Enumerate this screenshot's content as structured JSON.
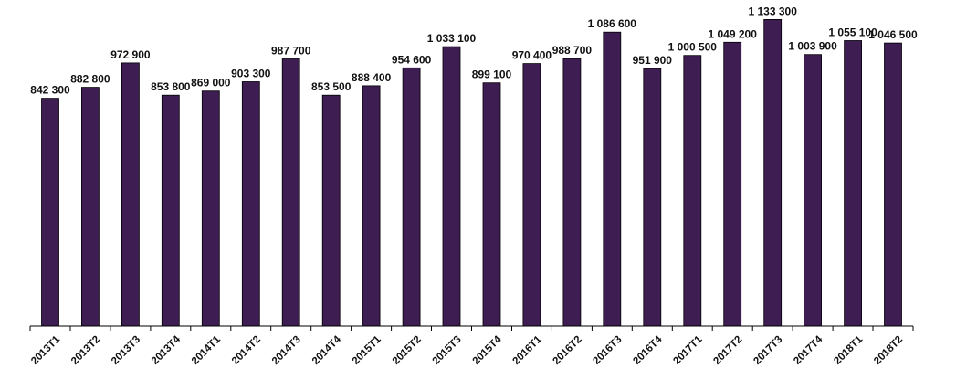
{
  "chart_data": {
    "type": "bar",
    "title": "",
    "xlabel": "",
    "ylabel": "",
    "ylim": [
      0,
      1165000
    ],
    "grid": false,
    "legend": "none",
    "bar_color": "#3e1d52",
    "categories": [
      "2013T1",
      "2013T2",
      "2013T3",
      "2013T4",
      "2014T1",
      "2014T2",
      "2014T3",
      "2014T4",
      "2015T1",
      "2015T2",
      "2015T3",
      "2015T4",
      "2016T1",
      "2016T2",
      "2016T3",
      "2016T4",
      "2017T1",
      "2017T2",
      "2017T3",
      "2017T4",
      "2018T1",
      "2018T2"
    ],
    "values": [
      842300,
      882800,
      972900,
      853800,
      869000,
      903300,
      987700,
      853500,
      888400,
      954600,
      1033100,
      899100,
      970400,
      988700,
      1086600,
      951900,
      1000500,
      1049200,
      1133300,
      1003900,
      1055100,
      1046500
    ],
    "value_labels": [
      "842 300",
      "882 800",
      "972 900",
      "853 800",
      "869 000",
      "903 300",
      "987 700",
      "853 500",
      "888 400",
      "954 600",
      "1 033 100",
      "899 100",
      "970 400",
      "988 700",
      "1 086 600",
      "951 900",
      "1 000 500",
      "1 049 200",
      "1 133 300",
      "1 003 900",
      "1 055 100",
      "1 046 500"
    ]
  }
}
